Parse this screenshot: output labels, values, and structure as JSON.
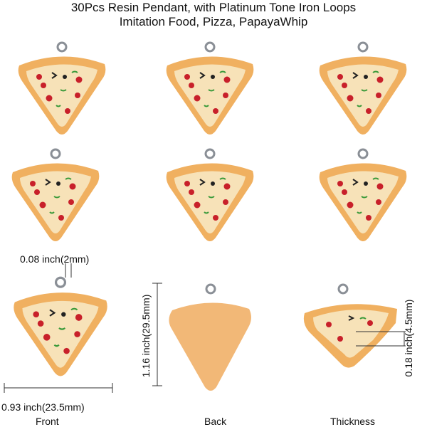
{
  "title_line1": "30Pcs Resin Pendant, with Platinum Tone Iron Loops",
  "title_line2": "Imitation Food, Pizza, PapayaWhip",
  "dimensions": {
    "loop_diameter": "0.08 inch(2mm)",
    "height": "1.16 inch(29.5mm)",
    "width": "0.93 inch(23.5mm)",
    "thickness": "0.18 inch(4.5mm)"
  },
  "captions": {
    "front": "Front",
    "back": "Back",
    "thickness": "Thickness"
  },
  "colors": {
    "crust": "#f0b060",
    "cheese": "#f7e2b8",
    "topping_red": "#c8202a",
    "topping_green": "#3a9a3a",
    "loop": "#8a8f96"
  }
}
